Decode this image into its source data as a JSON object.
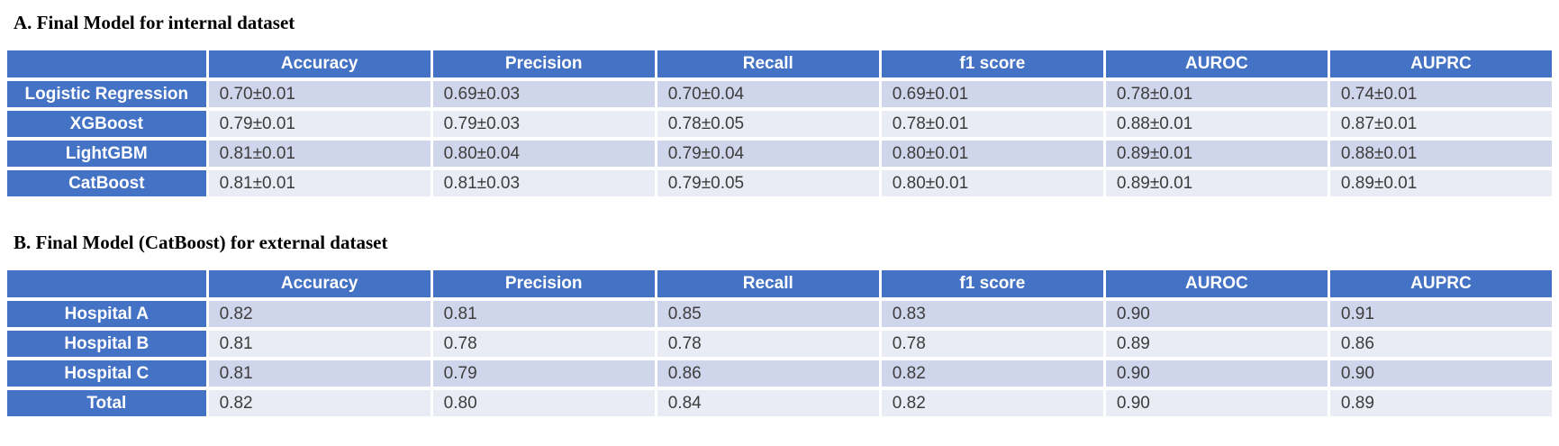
{
  "colors": {
    "accent": "#4472C4",
    "band_dark": "#CFD5EA",
    "band_light": "#E9EBF5",
    "header_text": "#FFFFFF",
    "cell_text": "#3D3D3D"
  },
  "a": {
    "title": "A. Final Model for internal dataset",
    "columns": [
      "Accuracy",
      "Precision",
      "Recall",
      "f1 score",
      "AUROC",
      "AUPRC"
    ],
    "rows": [
      {
        "label": "Logistic Regression",
        "values": [
          "0.70±0.01",
          "0.69±0.03",
          "0.70±0.04",
          "0.69±0.01",
          "0.78±0.01",
          "0.74±0.01"
        ]
      },
      {
        "label": "XGBoost",
        "values": [
          "0.79±0.01",
          "0.79±0.03",
          "0.78±0.05",
          "0.78±0.01",
          "0.88±0.01",
          "0.87±0.01"
        ]
      },
      {
        "label": "LightGBM",
        "values": [
          "0.81±0.01",
          "0.80±0.04",
          "0.79±0.04",
          "0.80±0.01",
          "0.89±0.01",
          "0.88±0.01"
        ]
      },
      {
        "label": "CatBoost",
        "values": [
          "0.81±0.01",
          "0.81±0.03",
          "0.79±0.05",
          "0.80±0.01",
          "0.89±0.01",
          "0.89±0.01"
        ]
      }
    ]
  },
  "b": {
    "title": "B. Final Model (CatBoost) for external dataset",
    "columns": [
      "Accuracy",
      "Precision",
      "Recall",
      "f1 score",
      "AUROC",
      "AUPRC"
    ],
    "rows": [
      {
        "label": "Hospital A",
        "values": [
          "0.82",
          "0.81",
          "0.85",
          "0.83",
          "0.90",
          "0.91"
        ]
      },
      {
        "label": "Hospital B",
        "values": [
          "0.81",
          "0.78",
          "0.78",
          "0.78",
          "0.89",
          "0.86"
        ]
      },
      {
        "label": "Hospital C",
        "values": [
          "0.81",
          "0.79",
          "0.86",
          "0.82",
          "0.90",
          "0.90"
        ]
      },
      {
        "label": "Total",
        "values": [
          "0.82",
          "0.80",
          "0.84",
          "0.82",
          "0.90",
          "0.89"
        ]
      }
    ]
  }
}
